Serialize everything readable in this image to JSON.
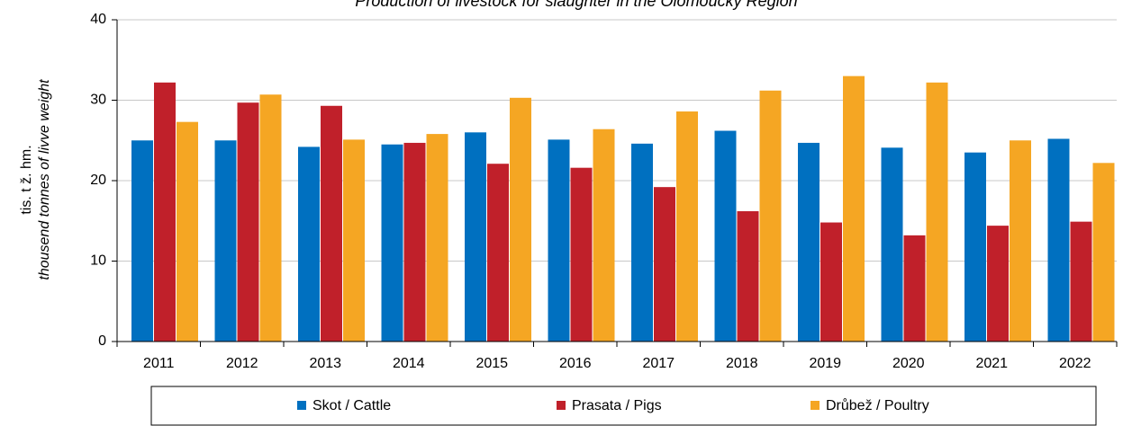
{
  "chart_data": {
    "type": "bar",
    "title": "Production of livestock for slaughter in the Olomoucký Region",
    "y_label": "tis. t ž. hm.",
    "y_label_en": "thousend tonnes of livve weight",
    "categories": [
      "2011",
      "2012",
      "2013",
      "2014",
      "2015",
      "2016",
      "2017",
      "2018",
      "2019",
      "2020",
      "2021",
      "2022"
    ],
    "series": [
      {
        "name": "Skot / Cattle",
        "color": "#0070c0",
        "values": [
          25.0,
          25.0,
          24.2,
          24.5,
          26.0,
          25.1,
          24.6,
          26.2,
          24.7,
          24.1,
          23.5,
          25.2
        ]
      },
      {
        "name": "Prasata / Pigs",
        "color": "#c0202a",
        "values": [
          32.2,
          29.7,
          29.3,
          24.7,
          22.1,
          21.6,
          19.2,
          16.2,
          14.8,
          13.2,
          14.4,
          14.9
        ]
      },
      {
        "name": "Drůbež / Poultry",
        "color": "#f5a623",
        "values": [
          27.3,
          30.7,
          25.1,
          25.8,
          30.3,
          26.4,
          28.6,
          31.2,
          33.0,
          32.2,
          25.0,
          22.2
        ]
      }
    ],
    "ylim": [
      0,
      40
    ],
    "yticks": [
      0,
      10,
      20,
      30,
      40
    ],
    "grid": true,
    "legend": "bottom"
  }
}
